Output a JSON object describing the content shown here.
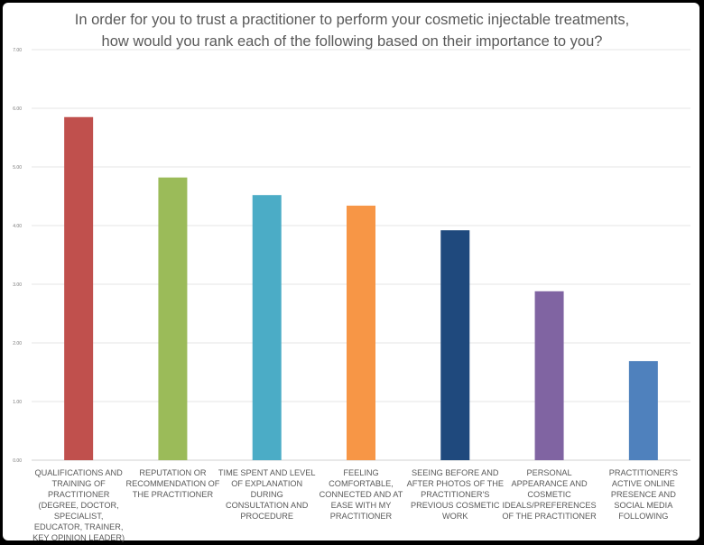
{
  "chart_data": {
    "type": "bar",
    "title_lines": [
      "In order for you to trust a practitioner to perform your cosmetic injectable treatments,",
      "how would you rank each of the following based on their importance to you?"
    ],
    "categories": [
      "QUALIFICATIONS AND TRAINING OF PRACTITIONER (DEGREE, DOCTOR, SPECIALIST, EDUCATOR, TRAINER, KEY OPINION LEADER)",
      "REPUTATION OR RECOMMENDATION OF THE PRACTITIONER",
      "TIME SPENT AND LEVEL OF EXPLANATION DURING CONSULTATION AND PROCEDURE",
      "FEELING COMFORTABLE, CONNECTED AND AT EASE WITH MY PRACTITIONER",
      "SEEING BEFORE AND AFTER PHOTOS OF THE PRACTITIONER'S PREVIOUS COSMETIC WORK",
      "PERSONAL APPEARANCE AND COSMETIC IDEALS/PREFERENCES OF THE PRACTITIONER",
      "PRACTITIONER'S ACTIVE ONLINE PRESENCE AND SOCIAL MEDIA FOLLOWING"
    ],
    "values": [
      5.85,
      4.82,
      4.52,
      4.34,
      3.92,
      2.88,
      1.69
    ],
    "colors": [
      "#c0504d",
      "#9bbb59",
      "#4bacc6",
      "#f79646",
      "#1f497d",
      "#8064a2",
      "#4f81bd"
    ],
    "ylim": [
      0,
      7
    ],
    "yticks": [
      "0.00",
      "1.00",
      "2.00",
      "3.00",
      "4.00",
      "5.00",
      "6.00",
      "7.00"
    ],
    "grid": true,
    "xlabel": "",
    "ylabel": ""
  }
}
